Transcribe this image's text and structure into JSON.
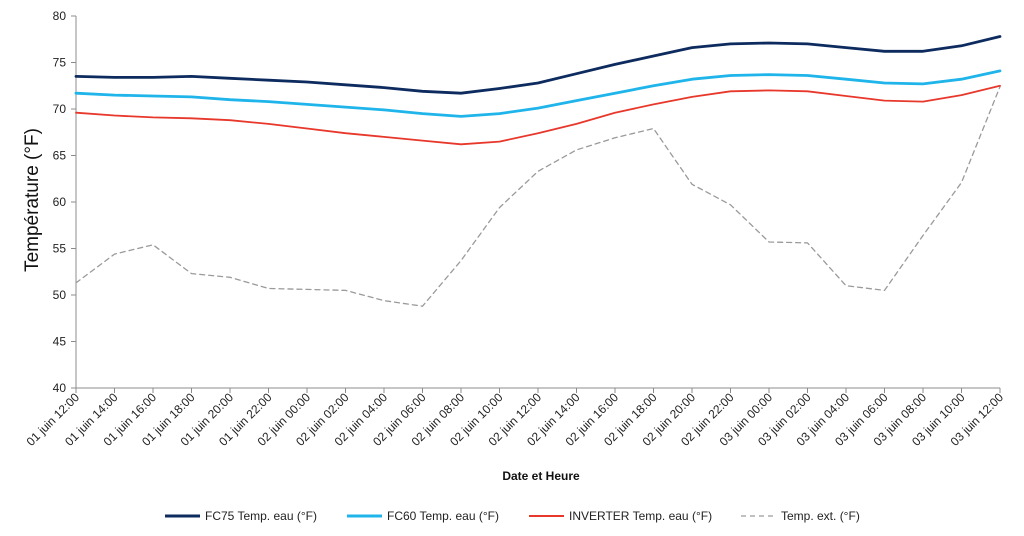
{
  "chart_data": {
    "type": "line",
    "xlabel": "Date et Heure",
    "ylabel": "Température (°F)",
    "ylim": [
      40,
      80
    ],
    "yticks": [
      40,
      45,
      50,
      55,
      60,
      65,
      70,
      75,
      80
    ],
    "grid": false,
    "legend_position": "bottom",
    "categories": [
      "01 juin 12:00",
      "01 juin 14:00",
      "01 juin 16:00",
      "01 juin 18:00",
      "01 juin 20:00",
      "01 juin 22:00",
      "02 juin 00:00",
      "02 juin 02:00",
      "02 juin 04:00",
      "02 juin 06:00",
      "02 juin 08:00",
      "02 juin 10:00",
      "02 juin 12:00",
      "02 juin 14:00",
      "02 juin 16:00",
      "02 juin 18:00",
      "02 juin 20:00",
      "02 juin 22:00",
      "03 juin 00:00",
      "03 juin 02:00",
      "03 juin 04:00",
      "03 juin 06:00",
      "03 juin 08:00",
      "03 juin 10:00",
      "03 juin 12:00"
    ],
    "series": [
      {
        "name": "FC75 Temp. eau (°F)",
        "color": "#0d2b5e",
        "style": "solid",
        "values": [
          73.5,
          73.4,
          73.4,
          73.5,
          73.3,
          73.1,
          72.9,
          72.6,
          72.3,
          71.9,
          71.7,
          72.2,
          72.8,
          73.8,
          74.8,
          75.7,
          76.6,
          77.0,
          77.1,
          77.0,
          76.6,
          76.2,
          76.2,
          76.8,
          77.8
        ]
      },
      {
        "name": "FC60 Temp. eau (°F)",
        "color": "#1fb4ea",
        "style": "solid",
        "values": [
          71.7,
          71.5,
          71.4,
          71.3,
          71.0,
          70.8,
          70.5,
          70.2,
          69.9,
          69.5,
          69.2,
          69.5,
          70.1,
          70.9,
          71.7,
          72.5,
          73.2,
          73.6,
          73.7,
          73.6,
          73.2,
          72.8,
          72.7,
          73.2,
          74.1
        ]
      },
      {
        "name": "INVERTER Temp. eau (°F)",
        "color": "#e8372b",
        "style": "solid",
        "values": [
          69.6,
          69.3,
          69.1,
          69.0,
          68.8,
          68.4,
          67.9,
          67.4,
          67.0,
          66.6,
          66.2,
          66.5,
          67.4,
          68.4,
          69.6,
          70.5,
          71.3,
          71.9,
          72.0,
          71.9,
          71.4,
          70.9,
          70.8,
          71.5,
          72.5
        ]
      },
      {
        "name": "Temp. ext. (°F)",
        "color": "#9a9a9a",
        "style": "dashed",
        "values": [
          51.3,
          54.4,
          55.4,
          52.3,
          51.9,
          50.7,
          50.6,
          50.5,
          49.4,
          48.8,
          53.7,
          59.4,
          63.3,
          65.6,
          66.9,
          67.9,
          61.9,
          59.7,
          55.7,
          55.6,
          51.0,
          50.5,
          56.4,
          62.1,
          72.4
        ]
      }
    ]
  }
}
